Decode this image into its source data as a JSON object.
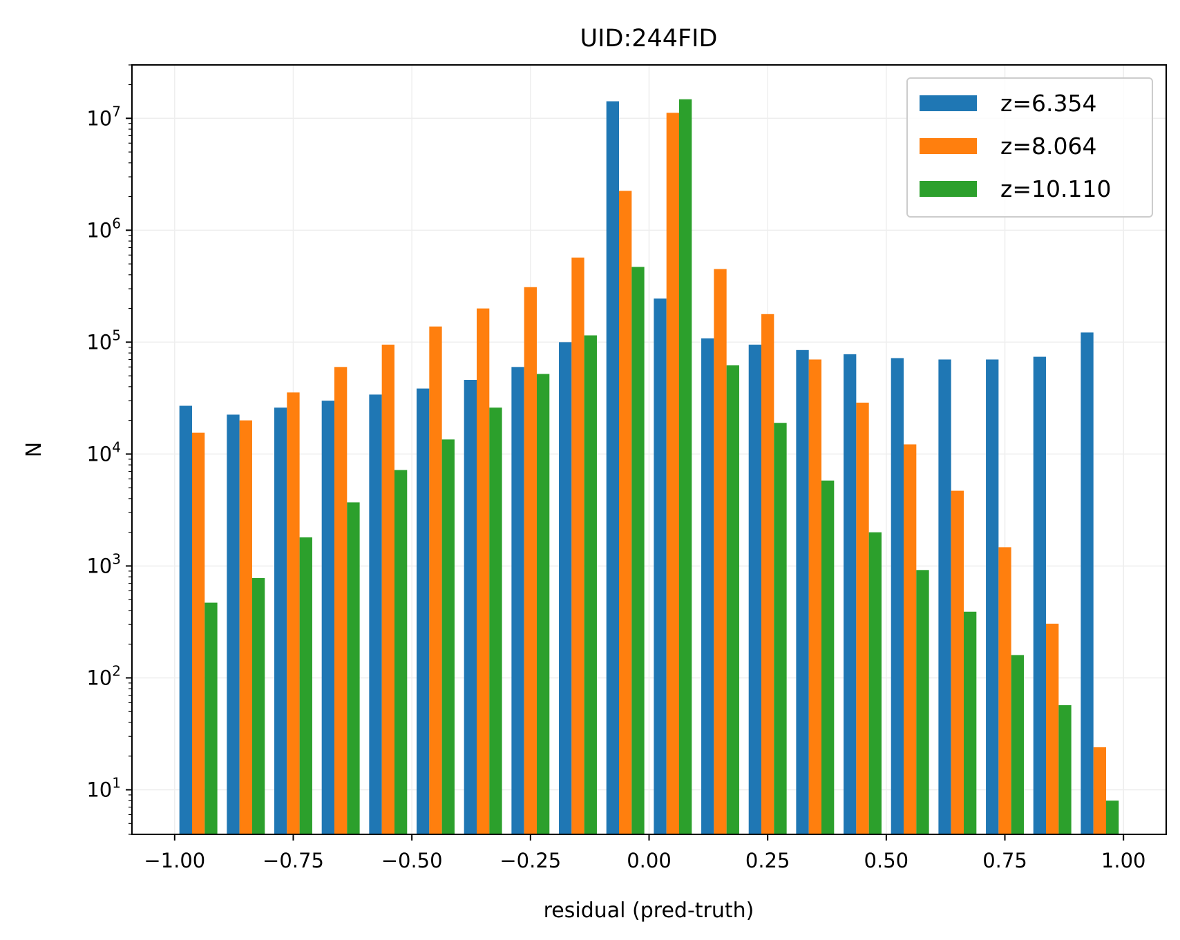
{
  "chart_data": {
    "type": "bar",
    "title": "UID:244FID",
    "xlabel": "residual (pred-truth)",
    "ylabel": "N",
    "yscale": "log",
    "ylim": [
      4,
      30000000
    ],
    "xlim": [
      -1.09,
      1.09
    ],
    "x_ticks": [
      "−1.00",
      "−0.75",
      "−0.50",
      "−0.25",
      "0.00",
      "0.25",
      "0.50",
      "0.75",
      "1.00"
    ],
    "x_tick_values": [
      -1.0,
      -0.75,
      -0.5,
      -0.25,
      0.0,
      0.25,
      0.5,
      0.75,
      1.0
    ],
    "y_ticks": [
      {
        "base": "10",
        "exp": "1",
        "value": 10
      },
      {
        "base": "10",
        "exp": "2",
        "value": 100
      },
      {
        "base": "10",
        "exp": "3",
        "value": 1000
      },
      {
        "base": "10",
        "exp": "4",
        "value": 10000
      },
      {
        "base": "10",
        "exp": "5",
        "value": 100000
      },
      {
        "base": "10",
        "exp": "6",
        "value": 1000000
      },
      {
        "base": "10",
        "exp": "7",
        "value": 10000000
      }
    ],
    "bin_edges": [
      -1.0,
      -0.9,
      -0.8,
      -0.7,
      -0.6,
      -0.5,
      -0.4,
      -0.3,
      -0.2,
      -0.1,
      0.0,
      0.1,
      0.2,
      0.3,
      0.4,
      0.5,
      0.6,
      0.7,
      0.8,
      0.9,
      1.0
    ],
    "grid": true,
    "legend_position": "top-right",
    "series": [
      {
        "name": "z=6.354",
        "color": "#1f77b4",
        "values": [
          27000,
          22500,
          26000,
          30000,
          34000,
          38500,
          46000,
          60000,
          100000,
          14200000,
          245000,
          108000,
          95000,
          85000,
          78000,
          72000,
          70000,
          70000,
          74000,
          122000
        ]
      },
      {
        "name": "z=8.064",
        "color": "#ff7f0e",
        "values": [
          15500,
          20000,
          35500,
          60000,
          95000,
          138000,
          200000,
          310000,
          570000,
          2250000,
          11200000,
          450000,
          178000,
          70000,
          28800,
          12200,
          4700,
          1470,
          305,
          24
        ]
      },
      {
        "name": "z=10.110",
        "color": "#2ca02c",
        "values": [
          470,
          780,
          1800,
          3700,
          7200,
          13500,
          26000,
          52000,
          115000,
          470000,
          14800000,
          62000,
          19000,
          5800,
          2000,
          920,
          390,
          160,
          57,
          8
        ]
      }
    ]
  }
}
